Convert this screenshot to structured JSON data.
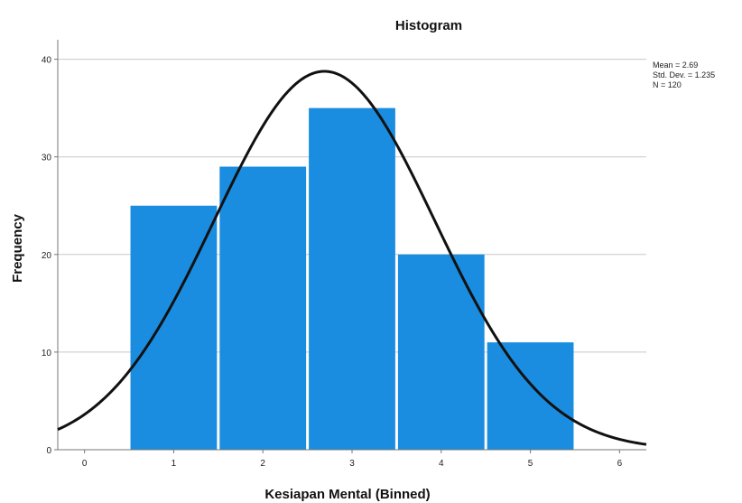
{
  "chart_data": {
    "type": "bar",
    "title": "Histogram",
    "xlabel": "Kesiapan Mental (Binned)",
    "ylabel": "Frequency",
    "bins": [
      {
        "center": 1,
        "start": 0.5,
        "end": 1.5,
        "value": 25
      },
      {
        "center": 2,
        "start": 1.5,
        "end": 2.5,
        "value": 29
      },
      {
        "center": 3,
        "start": 2.5,
        "end": 3.5,
        "value": 35
      },
      {
        "center": 4,
        "start": 3.5,
        "end": 4.5,
        "value": 20
      },
      {
        "center": 5,
        "start": 4.5,
        "end": 5.5,
        "value": 11
      }
    ],
    "xlim": [
      -0.3,
      6.3
    ],
    "ylim": [
      0,
      42
    ],
    "x_ticks": [
      0,
      1,
      2,
      3,
      4,
      5,
      6
    ],
    "y_ticks": [
      0,
      10,
      20,
      30,
      40
    ],
    "grid": "horizontal",
    "bar_color": "#1a8de0",
    "curve_color": "#111111",
    "normal_curve": {
      "mean": 2.69,
      "std_dev": 1.235,
      "n": 120
    },
    "stats_box": {
      "mean_text": "Mean = 2.69",
      "std_text": "Std. Dev. = 1.235",
      "n_text": "N = 120"
    },
    "legend_position": "top-right"
  }
}
